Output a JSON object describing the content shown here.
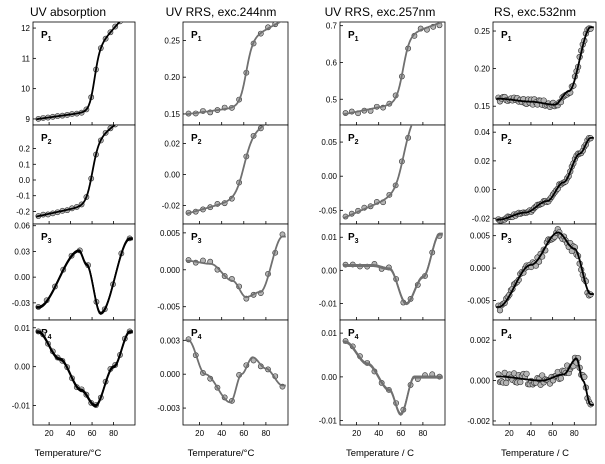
{
  "colors": {
    "fit_line": "#000000",
    "fit_line_gray": "#707070",
    "marker_fill": "#b4b4b4",
    "marker_stroke": "#303030"
  },
  "chart_data": [
    {
      "type": "scatter",
      "title": "UV absorption",
      "xlabel": "Temperature/°C",
      "xlim": [
        5,
        100
      ],
      "xticks": [
        "20",
        "40",
        "60",
        "80"
      ],
      "line_color": "#000000",
      "panels": [
        {
          "label": "P",
          "sub": "1",
          "ylim": [
            8.8,
            12.2
          ],
          "yticks": [
            "9",
            "10",
            "11",
            "12"
          ],
          "shape": "sigmoid",
          "params": {
            "lo": 9.0,
            "hi": 11.0,
            "mid": 62,
            "w": 2.5,
            "slopeLo": 0.005,
            "slopeHi": 0.035
          },
          "n": 20,
          "noise": 0.01,
          "fits": 1
        },
        {
          "label": "P",
          "sub": "2",
          "ylim": [
            -0.28,
            0.35
          ],
          "yticks": [
            "-0.2",
            "-0.1",
            "0.0",
            "0.1",
            "0.2"
          ],
          "shape": "sigmoid",
          "params": {
            "lo": -0.23,
            "hi": 0.16,
            "mid": 60,
            "w": 3.0,
            "slopeLo": 0.0015,
            "slopeHi": 0.004
          },
          "n": 20,
          "noise": 0.003,
          "fits": 1
        },
        {
          "label": "P",
          "sub": "3",
          "ylim": [
            -0.05,
            0.062
          ],
          "yticks": [
            "-0.03",
            "0.00",
            "0.03",
            "0.06"
          ],
          "shape": "piecewise",
          "params": {
            "pts": [
              [
                10,
                -0.035
              ],
              [
                48,
                0.031
              ],
              [
                55,
                0.015
              ],
              [
                68,
                -0.042
              ],
              [
                95,
                0.045
              ]
            ]
          },
          "n": 12,
          "noise": 0.001,
          "fits": 3
        },
        {
          "label": "P",
          "sub": "4",
          "ylim": [
            -0.015,
            0.012
          ],
          "yticks": [
            "-0.01",
            "0.00",
            "0.01"
          ],
          "shape": "piecewise",
          "params": {
            "pts": [
              [
                10,
                0.009
              ],
              [
                30,
                0.002
              ],
              [
                50,
                -0.006
              ],
              [
                63,
                -0.01
              ],
              [
                80,
                0.0
              ],
              [
                95,
                0.009
              ]
            ]
          },
          "n": 20,
          "noise": 0.0002,
          "fits": 3
        }
      ]
    },
    {
      "type": "scatter",
      "title": "UV RRS, exc.244nm",
      "xlabel": "Temperature/°C",
      "xlim": [
        5,
        100
      ],
      "xticks": [
        "20",
        "40",
        "60",
        "80"
      ],
      "line_color": "#707070",
      "panels": [
        {
          "label": "P",
          "sub": "1",
          "ylim": [
            0.135,
            0.275
          ],
          "yticks": [
            "0.15",
            "0.20",
            "0.25"
          ],
          "shape": "sigmoid",
          "params": {
            "lo": 0.15,
            "hi": 0.24,
            "mid": 62,
            "w": 3.0,
            "slopeLo": 0.0002,
            "slopeHi": 0.0006
          },
          "n": 14,
          "noise": 0.002,
          "fits": 1
        },
        {
          "label": "P",
          "sub": "2",
          "ylim": [
            -0.032,
            0.032
          ],
          "yticks": [
            "-0.02",
            "0.00",
            "0.02"
          ],
          "shape": "sigmoid",
          "params": {
            "lo": -0.025,
            "hi": 0.015,
            "mid": 60,
            "w": 4.0,
            "slopeLo": 0.0002,
            "slopeHi": 0.0002
          },
          "n": 14,
          "noise": 0.001,
          "fits": 1
        },
        {
          "label": "P",
          "sub": "3",
          "ylim": [
            -0.0068,
            0.0062
          ],
          "yticks": [
            "-0.005",
            "0.000",
            "0.005"
          ],
          "shape": "piecewise",
          "params": {
            "pts": [
              [
                10,
                0.0012
              ],
              [
                30,
                0.0008
              ],
              [
                50,
                -0.0015
              ],
              [
                62,
                -0.0037
              ],
              [
                75,
                -0.003
              ],
              [
                95,
                0.0045
              ]
            ]
          },
          "n": 14,
          "noise": 0.0004,
          "fits": 1
        },
        {
          "label": "P",
          "sub": "4",
          "ylim": [
            -0.0045,
            0.0048
          ],
          "yticks": [
            "-0.003",
            "0.000",
            "0.003"
          ],
          "shape": "piecewise",
          "params": {
            "pts": [
              [
                10,
                0.003
              ],
              [
                25,
                0.0
              ],
              [
                48,
                -0.0025
              ],
              [
                58,
                0.0
              ],
              [
                68,
                0.0015
              ],
              [
                80,
                0.0005
              ],
              [
                95,
                -0.001
              ]
            ]
          },
          "n": 14,
          "noise": 0.0003,
          "fits": 1
        }
      ]
    },
    {
      "type": "scatter",
      "title": "UV RRS, exc.257nm",
      "xlabel": "Temperature / C",
      "xlim": [
        5,
        100
      ],
      "xticks": [
        "20",
        "40",
        "60",
        "80"
      ],
      "line_color": "#707070",
      "panels": [
        {
          "label": "P",
          "sub": "1",
          "ylim": [
            0.43,
            0.71
          ],
          "yticks": [
            "0.5",
            "0.6",
            "0.7"
          ],
          "shape": "sigmoid",
          "params": {
            "lo": 0.46,
            "hi": 0.64,
            "mid": 62,
            "w": 3.0,
            "slopeLo": 0.0006,
            "slopeHi": 0.0005
          },
          "n": 16,
          "noise": 0.008,
          "fits": 1
        },
        {
          "label": "P",
          "sub": "2",
          "ylim": [
            -0.07,
            0.075
          ],
          "yticks": [
            "-0.05",
            "0.00",
            "0.05"
          ],
          "shape": "sigmoid",
          "params": {
            "lo": -0.06,
            "hi": 0.04,
            "mid": 62,
            "w": 4.0,
            "slopeLo": 0.0007,
            "slopeHi": 0.0008
          },
          "n": 16,
          "noise": 0.003,
          "fits": 1
        },
        {
          "label": "P",
          "sub": "3",
          "ylim": [
            -0.015,
            0.014
          ],
          "yticks": [
            "-0.01",
            "0.00",
            "0.01"
          ],
          "shape": "piecewise",
          "params": {
            "pts": [
              [
                10,
                0.0015
              ],
              [
                35,
                0.0015
              ],
              [
                50,
                0.0005
              ],
              [
                65,
                -0.01
              ],
              [
                80,
                -0.002
              ],
              [
                95,
                0.011
              ]
            ]
          },
          "n": 14,
          "noise": 0.0007,
          "fits": 3
        },
        {
          "label": "P",
          "sub": "4",
          "ylim": [
            -0.011,
            0.013
          ],
          "yticks": [
            "-0.01",
            "0.00",
            "0.01"
          ],
          "shape": "piecewise",
          "params": {
            "pts": [
              [
                10,
                0.008
              ],
              [
                30,
                0.003
              ],
              [
                50,
                -0.003
              ],
              [
                60,
                -0.0085
              ],
              [
                72,
                0.0
              ],
              [
                95,
                0.0
              ]
            ]
          },
          "n": 14,
          "noise": 0.0006,
          "fits": 3
        }
      ]
    },
    {
      "type": "scatter",
      "title": "RS, exc.532nm",
      "xlabel": "Temperature / C",
      "xlim": [
        5,
        100
      ],
      "xticks": [
        "20",
        "40",
        "60",
        "80"
      ],
      "line_color": "#000000",
      "panels": [
        {
          "label": "P",
          "sub": "1",
          "ylim": [
            0.125,
            0.262
          ],
          "yticks": [
            "0.15",
            "0.20",
            "0.25"
          ],
          "shape": "piecewise",
          "params": {
            "pts": [
              [
                10,
                0.16
              ],
              [
                40,
                0.156
              ],
              [
                62,
                0.152
              ],
              [
                75,
                0.17
              ],
              [
                95,
                0.255
              ]
            ]
          },
          "n": 60,
          "noise": 0.004,
          "fits": 1
        },
        {
          "label": "P",
          "sub": "2",
          "ylim": [
            -0.024,
            0.045
          ],
          "yticks": [
            "-0.02",
            "0.00",
            "0.02",
            "0.04"
          ],
          "shape": "piecewise",
          "params": {
            "pts": [
              [
                10,
                -0.021
              ],
              [
                35,
                -0.016
              ],
              [
                55,
                -0.008
              ],
              [
                70,
                0.005
              ],
              [
                85,
                0.025
              ],
              [
                95,
                0.036
              ]
            ]
          },
          "n": 60,
          "noise": 0.0008,
          "fits": 1
        },
        {
          "label": "P",
          "sub": "3",
          "ylim": [
            -0.008,
            0.0068
          ],
          "yticks": [
            "-0.005",
            "0.000",
            "0.005"
          ],
          "shape": "piecewise",
          "params": {
            "pts": [
              [
                10,
                -0.006
              ],
              [
                40,
                0.0005
              ],
              [
                65,
                0.0055
              ],
              [
                80,
                0.003
              ],
              [
                95,
                -0.004
              ]
            ]
          },
          "n": 60,
          "noise": 0.0006,
          "fits": 1
        },
        {
          "label": "P",
          "sub": "4",
          "ylim": [
            -0.0022,
            0.003
          ],
          "yticks": [
            "-0.002",
            "0.000",
            "0.002"
          ],
          "shape": "piecewise",
          "params": {
            "pts": [
              [
                10,
                0.0002
              ],
              [
                50,
                0.0
              ],
              [
                70,
                0.0003
              ],
              [
                82,
                0.0011
              ],
              [
                88,
                0.0
              ],
              [
                95,
                -0.0012
              ]
            ]
          },
          "n": 60,
          "noise": 0.0003,
          "fits": 1
        }
      ]
    }
  ]
}
